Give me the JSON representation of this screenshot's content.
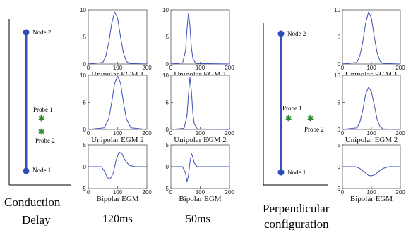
{
  "colors": {
    "line": "#3a4fb8",
    "node": "#2f4bb5",
    "probe": "#2e8b2e",
    "frame": "#000000",
    "panel_line": "#888888"
  },
  "left": {
    "node_top_label": "Node 2",
    "node_bottom_label": "Node 1",
    "probe1_label": "Probe 1",
    "probe2_label": "Probe 2",
    "caption_line1": "Conduction",
    "caption_line2": "Delay",
    "col1_label": "120ms",
    "col2_label": "50ms"
  },
  "right": {
    "node_top_label": "Node 2",
    "node_bottom_label": "Node 1",
    "probe1_label": "Probe 1",
    "probe2_label": "Probe 2",
    "caption_line1": "Perpendicular",
    "caption_line2": "configuration"
  },
  "chart_data": [
    {
      "type": "line",
      "panel": "delay-120ms-unipolar-1",
      "xlabel": "Unipolar EGM 1",
      "xlim": [
        0,
        200
      ],
      "ylim": [
        0,
        10
      ],
      "xticks": [
        0,
        100,
        200
      ],
      "yticks": [
        0,
        5,
        10
      ],
      "x": [
        0,
        50,
        60,
        70,
        80,
        90,
        100,
        110,
        120,
        130,
        140,
        200
      ],
      "y": [
        0,
        0.3,
        1.5,
        4,
        7.5,
        9.6,
        8.5,
        5,
        2,
        0.5,
        0.1,
        0
      ]
    },
    {
      "type": "line",
      "panel": "delay-50ms-unipolar-1",
      "xlabel": "Unipolar EGM 1",
      "xlim": [
        0,
        200
      ],
      "ylim": [
        0,
        10
      ],
      "xticks": [
        0,
        100,
        200
      ],
      "yticks": [
        0,
        5,
        10
      ],
      "x": [
        0,
        40,
        50,
        55,
        60,
        65,
        70,
        75,
        85,
        200
      ],
      "y": [
        0,
        0.2,
        2.5,
        6.5,
        9.4,
        7,
        3,
        1,
        0.1,
        0
      ]
    },
    {
      "type": "line",
      "panel": "delay-120ms-unipolar-2",
      "xlabel": "Unipolar EGM 2",
      "xlim": [
        0,
        200
      ],
      "ylim": [
        0,
        10
      ],
      "xticks": [
        0,
        100,
        200
      ],
      "yticks": [
        0,
        5,
        10
      ],
      "x": [
        0,
        55,
        70,
        80,
        90,
        100,
        110,
        120,
        130,
        145,
        200
      ],
      "y": [
        0,
        0.3,
        2,
        5,
        8.5,
        9.8,
        8.6,
        5,
        2,
        0.3,
        0
      ]
    },
    {
      "type": "line",
      "panel": "delay-50ms-unipolar-2",
      "xlabel": "Unipolar EGM 2",
      "xlim": [
        0,
        200
      ],
      "ylim": [
        0,
        10
      ],
      "xticks": [
        0,
        100,
        200
      ],
      "yticks": [
        0,
        5,
        10
      ],
      "x": [
        0,
        45,
        55,
        60,
        65,
        70,
        75,
        80,
        90,
        200
      ],
      "y": [
        0,
        0.2,
        2.5,
        6.5,
        9.6,
        7,
        3,
        1,
        0.1,
        0
      ]
    },
    {
      "type": "line",
      "panel": "delay-120ms-bipolar",
      "xlabel": "Bipolar EGM",
      "xlim": [
        0,
        200
      ],
      "ylim": [
        -5,
        5
      ],
      "xticks": [
        0,
        100,
        200
      ],
      "yticks": [
        -5,
        0,
        5
      ],
      "x": [
        0,
        45,
        55,
        65,
        75,
        85,
        95,
        105,
        115,
        125,
        140,
        160,
        200
      ],
      "y": [
        0,
        0,
        -1,
        -2.5,
        -2.8,
        -1.5,
        1.5,
        3.4,
        3,
        1.5,
        0.3,
        0,
        0
      ]
    },
    {
      "type": "line",
      "panel": "delay-50ms-bipolar",
      "xlabel": "Bipolar EGM",
      "xlim": [
        0,
        200
      ],
      "ylim": [
        -5,
        5
      ],
      "xticks": [
        0,
        100,
        200
      ],
      "yticks": [
        -5,
        0,
        5
      ],
      "x": [
        0,
        40,
        50,
        55,
        60,
        65,
        70,
        75,
        80,
        90,
        200
      ],
      "y": [
        0,
        0,
        -1.5,
        -3.5,
        -2,
        1,
        3,
        2.2,
        0.8,
        0,
        0
      ]
    },
    {
      "type": "line",
      "panel": "perpendicular-unipolar-1",
      "xlabel": "Unipolar EGM 1",
      "xlim": [
        0,
        200
      ],
      "ylim": [
        0,
        10
      ],
      "xticks": [
        0,
        100,
        200
      ],
      "yticks": [
        0,
        5,
        10
      ],
      "x": [
        0,
        50,
        60,
        70,
        80,
        90,
        100,
        110,
        120,
        130,
        140,
        200
      ],
      "y": [
        0,
        0.3,
        1.5,
        4,
        7.5,
        9.6,
        8.5,
        5,
        2,
        0.5,
        0.1,
        0
      ]
    },
    {
      "type": "line",
      "panel": "perpendicular-unipolar-2",
      "xlabel": "Unipolar EGM 2",
      "xlim": [
        0,
        200
      ],
      "ylim": [
        0,
        10
      ],
      "xticks": [
        0,
        100,
        200
      ],
      "yticks": [
        0,
        5,
        10
      ],
      "x": [
        0,
        50,
        60,
        70,
        80,
        90,
        100,
        110,
        120,
        130,
        140,
        200
      ],
      "y": [
        0,
        0.3,
        1.3,
        3.5,
        6.5,
        7.8,
        7,
        4.5,
        1.8,
        0.5,
        0.1,
        0
      ]
    },
    {
      "type": "line",
      "panel": "perpendicular-bipolar",
      "xlabel": "Bipolar EGM",
      "xlim": [
        0,
        200
      ],
      "ylim": [
        -5,
        5
      ],
      "xticks": [
        0,
        100,
        200
      ],
      "yticks": [
        -5,
        0,
        5
      ],
      "x": [
        0,
        45,
        60,
        75,
        90,
        100,
        110,
        125,
        140,
        160,
        200
      ],
      "y": [
        0,
        0,
        -0.4,
        -1.2,
        -2,
        -2.1,
        -1.9,
        -1.1,
        -0.4,
        0,
        0
      ]
    }
  ]
}
